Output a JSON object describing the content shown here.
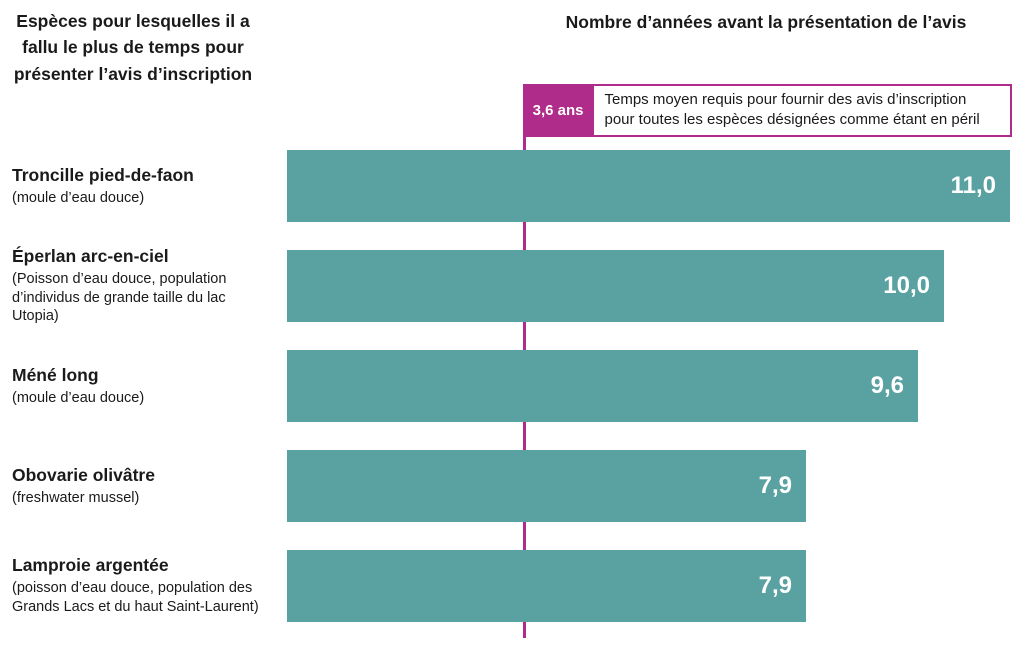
{
  "header": {
    "left_title": "Espèces pour lesquelles il a fallu le plus de temps pour présenter l’avis d’inscription",
    "right_title": "Nombre d’années avant la présentation de l’avis"
  },
  "annotation": {
    "value_label": "3,6 ans",
    "value": 3.6,
    "text": "Temps moyen requis pour fournir des avis d’inscription pour toutes les espèces désignées comme étant en péril"
  },
  "colors": {
    "bar": "#5aa2a2",
    "accent": "#b02c8a"
  },
  "chart_data": {
    "type": "bar",
    "orientation": "horizontal",
    "title": "Nombre d’années avant la présentation de l’avis",
    "categories": [
      "Troncille pied-de-faon",
      "Éperlan arc-en-ciel",
      "Méné long",
      "Obovarie olivâtre",
      "Lamproie argentée"
    ],
    "sublabels": [
      "(moule d’eau douce)",
      "(Poisson d’eau douce, population d’individus de grande taille du lac Utopia)",
      "(moule d’eau douce)",
      "(freshwater mussel)",
      "(poisson d’eau douce, population des Grands Lacs et du haut Saint-Laurent)"
    ],
    "values": [
      11.0,
      10.0,
      9.6,
      7.9,
      7.9
    ],
    "value_labels": [
      "11,0",
      "10,0",
      "9,6",
      "7,9",
      "7,9"
    ],
    "xlabel": "",
    "ylabel": "",
    "xlim": [
      0,
      11
    ],
    "grid": false,
    "legend": false,
    "reference_line": {
      "value": 3.6,
      "label": "3,6 ans"
    }
  }
}
